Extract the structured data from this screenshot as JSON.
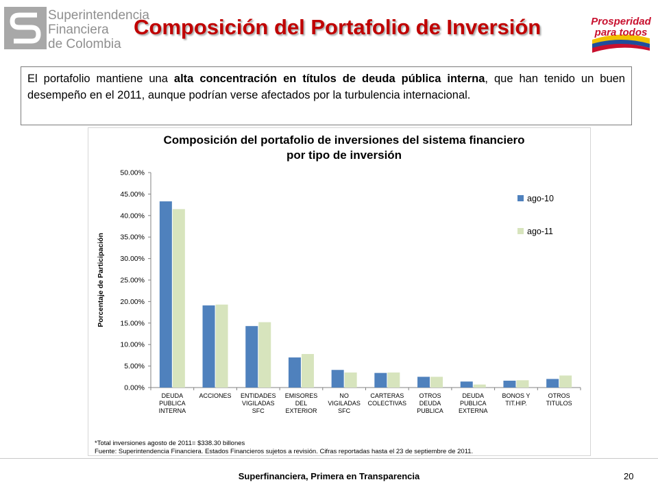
{
  "header": {
    "org_lines": [
      "Superintendencia",
      "Financiera",
      "de Colombia"
    ],
    "slide_title": "Composición del Portafolio de Inversión",
    "campaign_logo": [
      "Prosperidad",
      "para todos"
    ]
  },
  "intro": {
    "part1": "El portafolio mantiene una ",
    "bold": "alta concentración en títulos de deuda pública interna",
    "part2": ", que han tenido un buen desempeño en el 2011, aunque podrían verse afectados por la turbulencia internacional."
  },
  "chart_data": {
    "type": "bar",
    "title": "Composición del portafolio de inversiones del sistema financiero por tipo de inversión",
    "title_lines": [
      "Composición del portafolio de inversiones del sistema financiero",
      "por tipo de inversión"
    ],
    "ylabel": "Porcentaje de Participación",
    "xlabel": "",
    "ylim": [
      0,
      50
    ],
    "yticks": [
      "0.00%",
      "5.00%",
      "10.00%",
      "15.00%",
      "20.00%",
      "25.00%",
      "30.00%",
      "35.00%",
      "40.00%",
      "45.00%",
      "50.00%"
    ],
    "categories": [
      [
        "DEUDA",
        "PUBLICA",
        "INTERNA"
      ],
      [
        "ACCIONES"
      ],
      [
        "ENTIDADES",
        "VIGILADAS",
        "SFC"
      ],
      [
        "EMISORES",
        "DEL",
        "EXTERIOR"
      ],
      [
        "NO",
        "VIGILADAS",
        "SFC"
      ],
      [
        "CARTERAS",
        "COLECTIVAS"
      ],
      [
        "OTROS",
        "DEUDA",
        "PUBLICA"
      ],
      [
        "DEUDA",
        "PUBLICA",
        "EXTERNA"
      ],
      [
        "BONOS Y",
        "TIT.HIP."
      ],
      [
        "OTROS",
        "TITULOS"
      ]
    ],
    "series": [
      {
        "name": "ago-10",
        "color": "#4f81bd",
        "values": [
          43.3,
          19.1,
          14.3,
          7.0,
          4.1,
          3.4,
          2.5,
          1.4,
          1.6,
          2.0
        ]
      },
      {
        "name": "ago-11",
        "color": "#d7e4bd",
        "values": [
          41.5,
          19.3,
          15.2,
          7.8,
          3.5,
          3.5,
          2.5,
          0.7,
          1.7,
          2.8
        ]
      }
    ],
    "legend_position": "right",
    "grid": false
  },
  "notes": {
    "total": "*Total inversiones agosto de 2011= $338.30 billones",
    "source": "Fuente: Superintendencia Financiera. Estados Financieros sujetos a revisión. Cifras reportadas hasta el 23 de septiembre de 2011."
  },
  "footer": {
    "tagline": "Superfinanciera, Primera en Transparencia",
    "page_number": "20"
  },
  "colors": {
    "title_red": "#c00000",
    "logo_gray": "#8f8f8f",
    "campaign_red": "#c8102e",
    "campaign_yellow": "#f2c200",
    "campaign_blue": "#1f4e9c"
  }
}
